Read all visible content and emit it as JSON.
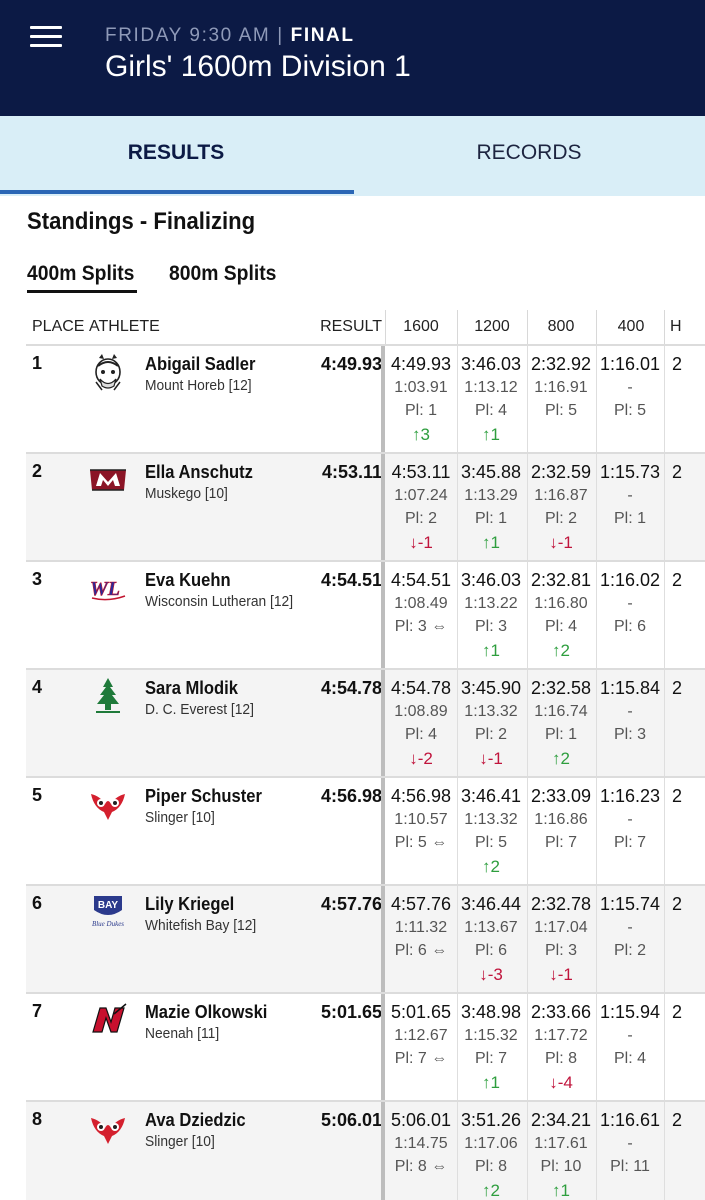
{
  "header": {
    "day_time": "FRIDAY 9:30 AM",
    "separator": " | ",
    "status": "FINAL",
    "title": "Girls' 1600m Division 1"
  },
  "tabs": {
    "results": "RESULTS",
    "records": "RECORDS",
    "active": "results"
  },
  "section_title": "Standings - Finalizing",
  "split_tabs": {
    "first": "400m Splits",
    "second": "800m Splits",
    "active": "first"
  },
  "columns": {
    "place": "PLACE",
    "athlete": "ATHLETE",
    "result": "RESULT",
    "c1600": "1600",
    "c1200": "1200",
    "c800": "800",
    "c400": "400",
    "peek": "H"
  },
  "colors": {
    "header_bg": "#0c1a45",
    "tabs_bg": "#d9eef7",
    "indicator": "#2a66b5",
    "up": "#2e9e3e",
    "down": "#c0143c"
  },
  "rows": [
    {
      "place": "1",
      "name": "Abigail Sadler",
      "school": "Mount Horeb [12]",
      "result": "4:49.93",
      "logo": "mount-horeb-logo",
      "s1600": {
        "time": "4:49.93",
        "delta": "1:03.91",
        "pl": "Pl: 1",
        "chg": "↑3",
        "dir": "up"
      },
      "s1200": {
        "time": "3:46.03",
        "delta": "1:13.12",
        "pl": "Pl: 4",
        "chg": "↑1",
        "dir": "up"
      },
      "s800": {
        "time": "2:32.92",
        "delta": "1:16.91",
        "pl": "Pl: 5",
        "chg": "",
        "dir": ""
      },
      "s400": {
        "time": "1:16.01",
        "delta": "-",
        "pl": "Pl: 5",
        "chg": "",
        "dir": ""
      },
      "peek": "2"
    },
    {
      "place": "2",
      "name": "Ella Anschutz",
      "school": "Muskego [10]",
      "result": "4:53.11",
      "logo": "muskego-logo",
      "s1600": {
        "time": "4:53.11",
        "delta": "1:07.24",
        "pl": "Pl: 2",
        "chg": "↓-1",
        "dir": "down"
      },
      "s1200": {
        "time": "3:45.88",
        "delta": "1:13.29",
        "pl": "Pl: 1",
        "chg": "↑1",
        "dir": "up"
      },
      "s800": {
        "time": "2:32.59",
        "delta": "1:16.87",
        "pl": "Pl: 2",
        "chg": "↓-1",
        "dir": "down"
      },
      "s400": {
        "time": "1:15.73",
        "delta": "-",
        "pl": "Pl: 1",
        "chg": "",
        "dir": ""
      },
      "peek": "2"
    },
    {
      "place": "3",
      "name": "Eva Kuehn",
      "school": "Wisconsin Lutheran [12]",
      "result": "4:54.51",
      "logo": "wisconsin-lutheran-logo",
      "s1600": {
        "time": "4:54.51",
        "delta": "1:08.49",
        "pl": "Pl: 3 ⇔",
        "chg": "",
        "dir": ""
      },
      "s1200": {
        "time": "3:46.03",
        "delta": "1:13.22",
        "pl": "Pl: 3",
        "chg": "↑1",
        "dir": "up"
      },
      "s800": {
        "time": "2:32.81",
        "delta": "1:16.80",
        "pl": "Pl: 4",
        "chg": "↑2",
        "dir": "up"
      },
      "s400": {
        "time": "1:16.02",
        "delta": "-",
        "pl": "Pl: 6",
        "chg": "",
        "dir": ""
      },
      "peek": "2"
    },
    {
      "place": "4",
      "name": "Sara Mlodik",
      "school": "D. C. Everest [12]",
      "result": "4:54.78",
      "logo": "dc-everest-logo",
      "s1600": {
        "time": "4:54.78",
        "delta": "1:08.89",
        "pl": "Pl: 4",
        "chg": "↓-2",
        "dir": "down"
      },
      "s1200": {
        "time": "3:45.90",
        "delta": "1:13.32",
        "pl": "Pl: 2",
        "chg": "↓-1",
        "dir": "down"
      },
      "s800": {
        "time": "2:32.58",
        "delta": "1:16.74",
        "pl": "Pl: 1",
        "chg": "↑2",
        "dir": "up"
      },
      "s400": {
        "time": "1:15.84",
        "delta": "-",
        "pl": "Pl: 3",
        "chg": "",
        "dir": ""
      },
      "peek": "2"
    },
    {
      "place": "5",
      "name": "Piper Schuster",
      "school": "Slinger [10]",
      "result": "4:56.98",
      "logo": "slinger-logo",
      "s1600": {
        "time": "4:56.98",
        "delta": "1:10.57",
        "pl": "Pl: 5 ⇔",
        "chg": "",
        "dir": ""
      },
      "s1200": {
        "time": "3:46.41",
        "delta": "1:13.32",
        "pl": "Pl: 5",
        "chg": "↑2",
        "dir": "up"
      },
      "s800": {
        "time": "2:33.09",
        "delta": "1:16.86",
        "pl": "Pl: 7",
        "chg": "",
        "dir": ""
      },
      "s400": {
        "time": "1:16.23",
        "delta": "-",
        "pl": "Pl: 7",
        "chg": "",
        "dir": ""
      },
      "peek": "2"
    },
    {
      "place": "6",
      "name": "Lily Kriegel",
      "school": "Whitefish Bay [12]",
      "result": "4:57.76",
      "logo": "whitefish-bay-logo",
      "s1600": {
        "time": "4:57.76",
        "delta": "1:11.32",
        "pl": "Pl: 6 ⇔",
        "chg": "",
        "dir": ""
      },
      "s1200": {
        "time": "3:46.44",
        "delta": "1:13.67",
        "pl": "Pl: 6",
        "chg": "↓-3",
        "dir": "down"
      },
      "s800": {
        "time": "2:32.78",
        "delta": "1:17.04",
        "pl": "Pl: 3",
        "chg": "↓-1",
        "dir": "down"
      },
      "s400": {
        "time": "1:15.74",
        "delta": "-",
        "pl": "Pl: 2",
        "chg": "",
        "dir": ""
      },
      "peek": "2"
    },
    {
      "place": "7",
      "name": "Mazie Olkowski",
      "school": "Neenah [11]",
      "result": "5:01.65",
      "logo": "neenah-logo",
      "s1600": {
        "time": "5:01.65",
        "delta": "1:12.67",
        "pl": "Pl: 7 ⇔",
        "chg": "",
        "dir": ""
      },
      "s1200": {
        "time": "3:48.98",
        "delta": "1:15.32",
        "pl": "Pl: 7",
        "chg": "↑1",
        "dir": "up"
      },
      "s800": {
        "time": "2:33.66",
        "delta": "1:17.72",
        "pl": "Pl: 8",
        "chg": "↓-4",
        "dir": "down"
      },
      "s400": {
        "time": "1:15.94",
        "delta": "-",
        "pl": "Pl: 4",
        "chg": "",
        "dir": ""
      },
      "peek": "2"
    },
    {
      "place": "8",
      "name": "Ava Dziedzic",
      "school": "Slinger [10]",
      "result": "5:06.01",
      "logo": "slinger-logo",
      "s1600": {
        "time": "5:06.01",
        "delta": "1:14.75",
        "pl": "Pl: 8 ⇔",
        "chg": "",
        "dir": ""
      },
      "s1200": {
        "time": "3:51.26",
        "delta": "1:17.06",
        "pl": "Pl: 8",
        "chg": "↑2",
        "dir": "up"
      },
      "s800": {
        "time": "2:34.21",
        "delta": "1:17.61",
        "pl": "Pl: 10",
        "chg": "↑1",
        "dir": "up"
      },
      "s400": {
        "time": "1:16.61",
        "delta": "-",
        "pl": "Pl: 11",
        "chg": "",
        "dir": ""
      },
      "peek": "2"
    }
  ]
}
